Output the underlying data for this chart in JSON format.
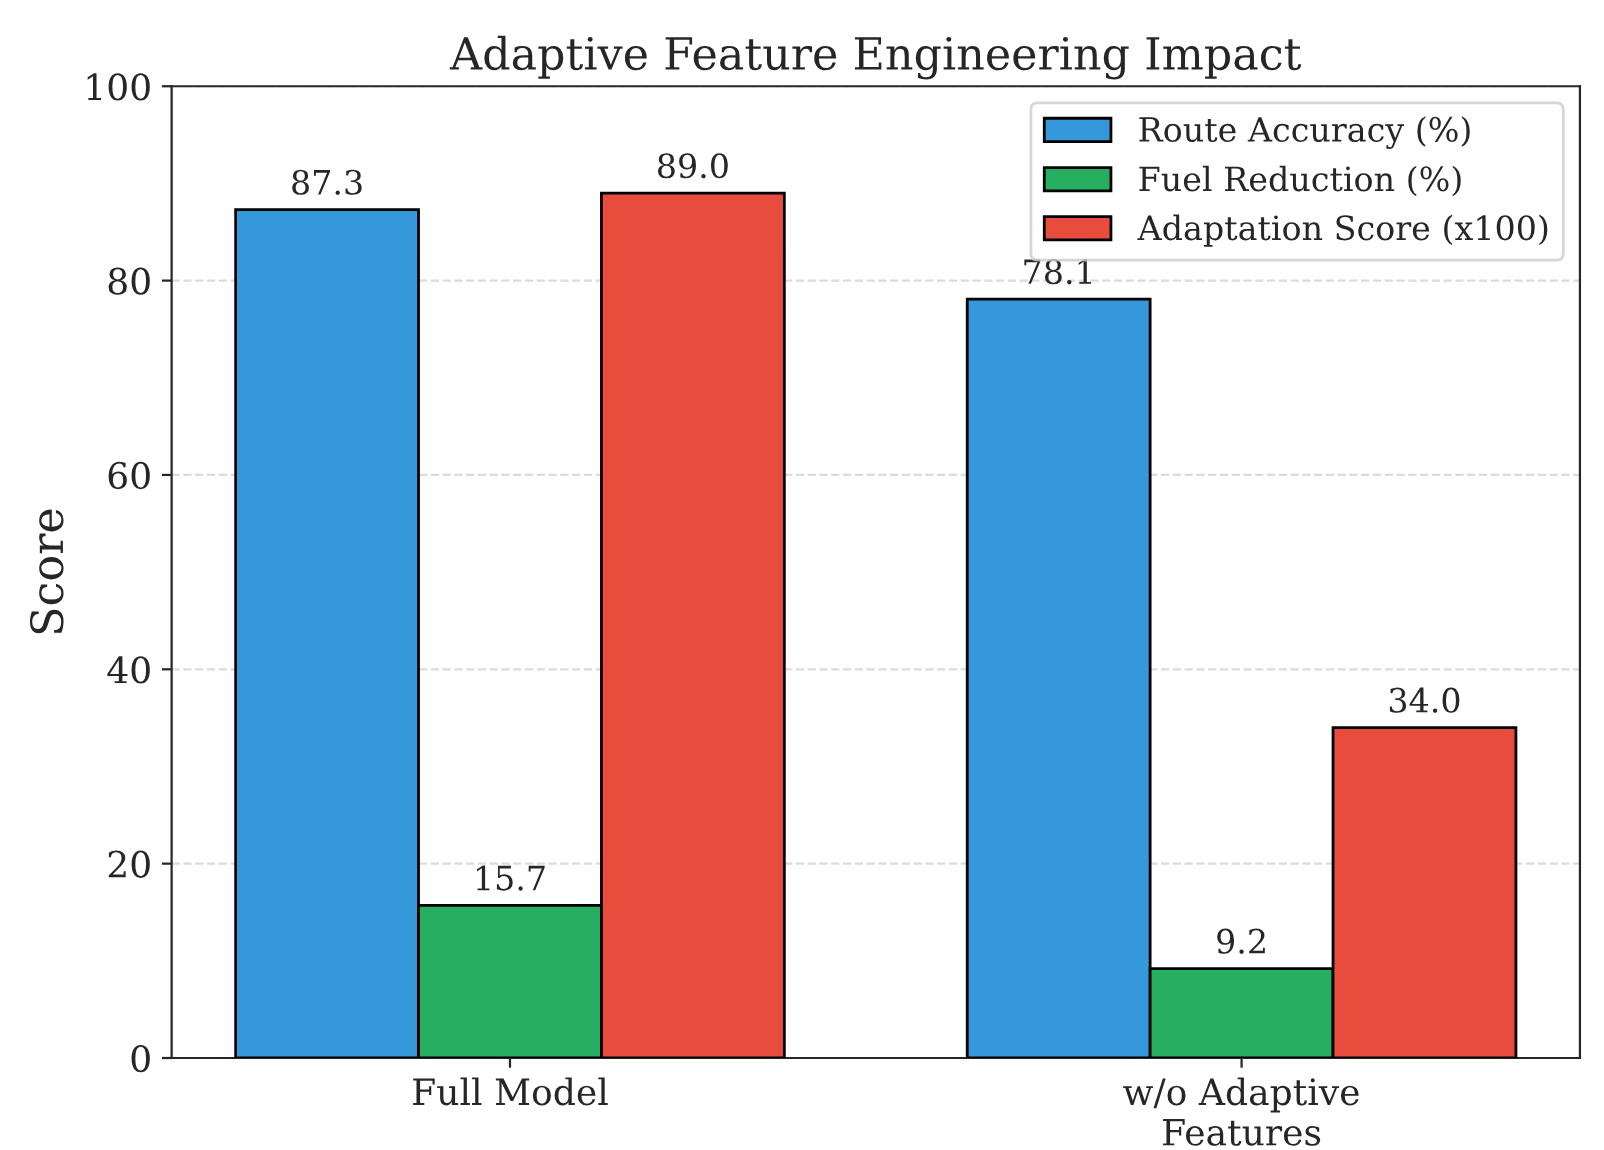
{
  "chart_data": {
    "type": "bar",
    "title": "Adaptive Feature Engineering Impact",
    "ylabel": "Score",
    "categories": [
      "Full Model",
      "w/o Adaptive\nFeatures"
    ],
    "series": [
      {
        "name": "Route Accuracy (%)",
        "color": "#3498db",
        "values": [
          87.3,
          78.1
        ],
        "value_labels": [
          "87.3",
          "78.1"
        ]
      },
      {
        "name": "Fuel Reduction (%)",
        "color": "#27ae60",
        "values": [
          15.7,
          9.2
        ],
        "value_labels": [
          "15.7",
          "9.2"
        ]
      },
      {
        "name": "Adaptation Score (x100)",
        "color": "#e74c3c",
        "values": [
          89.0,
          34.0
        ],
        "value_labels": [
          "89.0",
          "34.0"
        ]
      }
    ],
    "ylim": [
      0,
      100
    ],
    "yticks": [
      0,
      20,
      40,
      60,
      80,
      100
    ],
    "grid": "y",
    "legend": "top right"
  }
}
